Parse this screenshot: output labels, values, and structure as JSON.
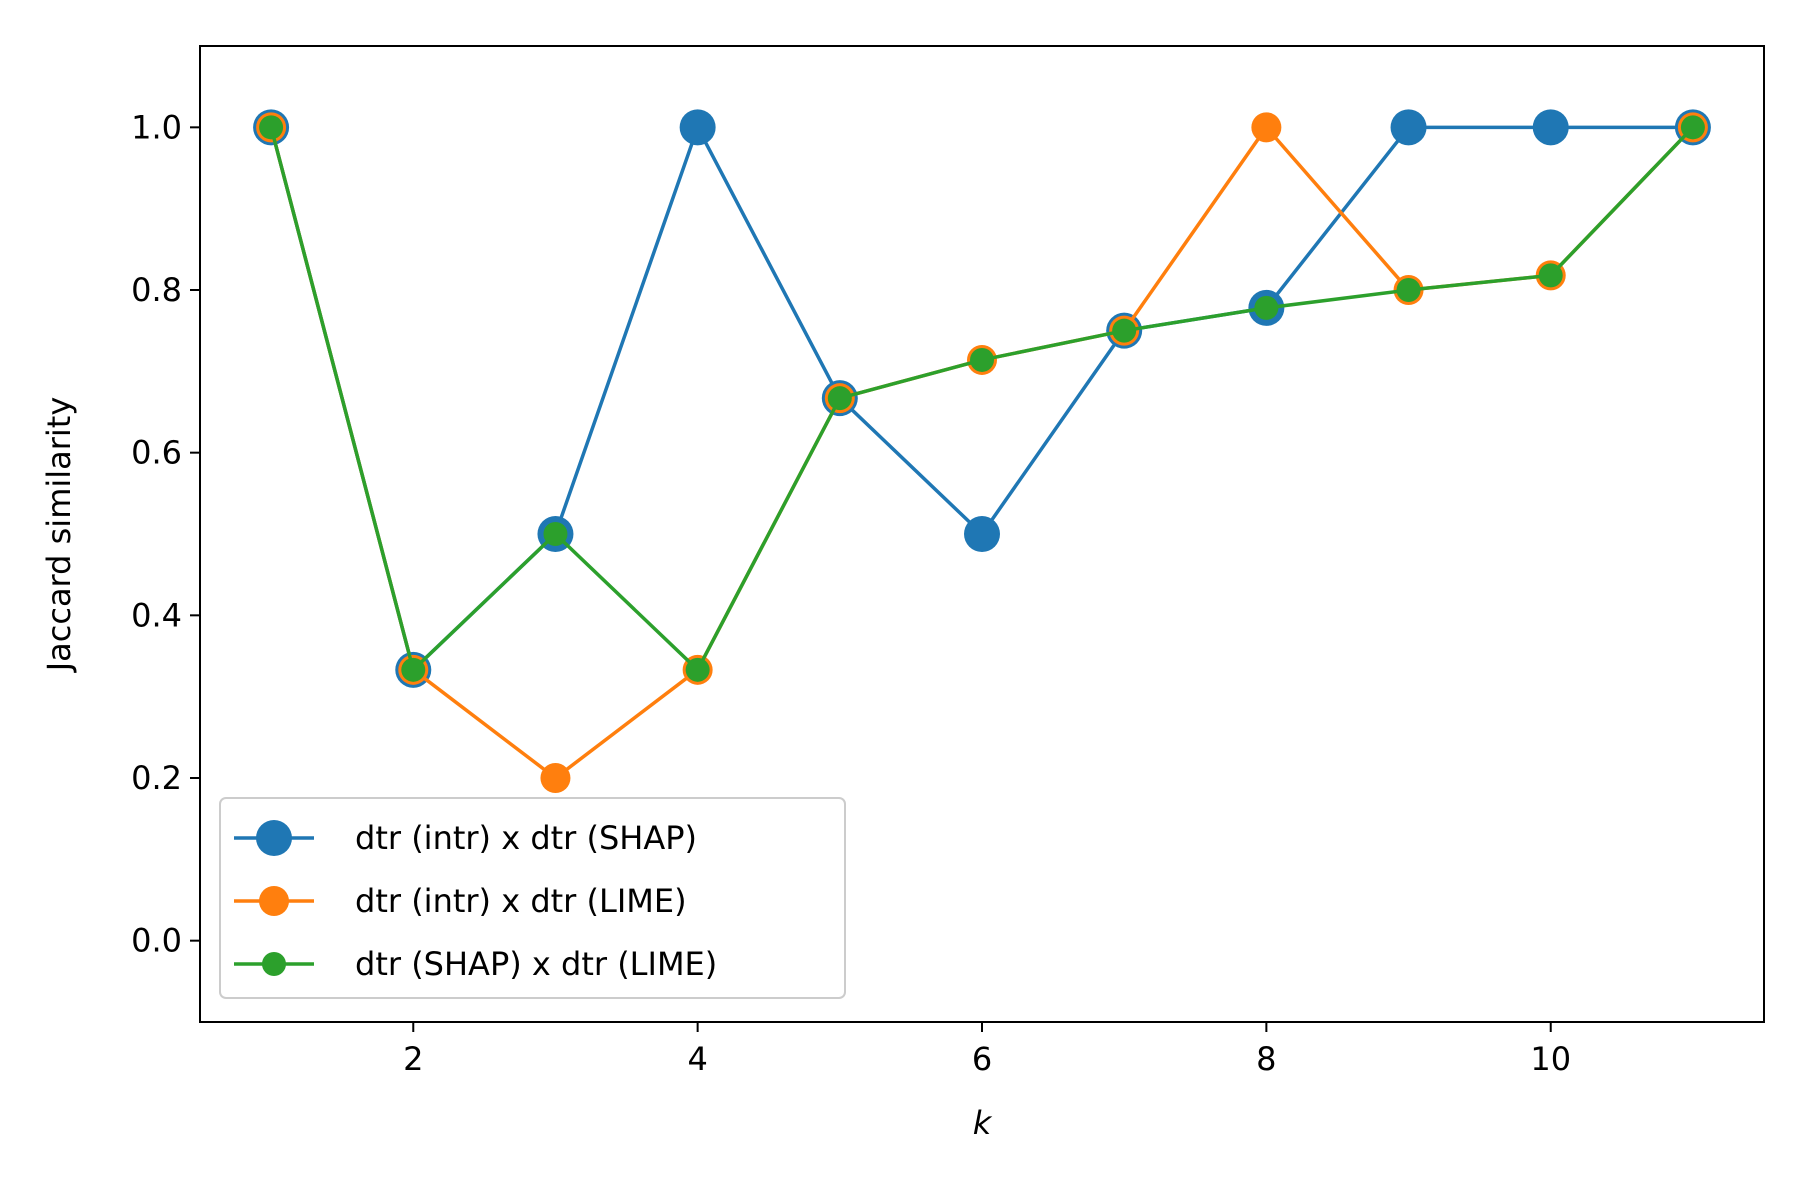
{
  "chart_data": {
    "type": "line",
    "title": "",
    "xlabel": "k",
    "ylabel": "Jaccard similarity",
    "x": [
      1,
      2,
      3,
      4,
      5,
      6,
      7,
      8,
      9,
      10,
      11
    ],
    "xlim": [
      0.5,
      11.5
    ],
    "ylim": [
      -0.1,
      1.1
    ],
    "xticks": [
      2,
      4,
      6,
      8,
      10
    ],
    "xtick_labels": [
      "2",
      "4",
      "6",
      "8",
      "10"
    ],
    "yticks": [
      0.0,
      0.2,
      0.4,
      0.6,
      0.8,
      1.0
    ],
    "ytick_labels": [
      "0.0",
      "0.2",
      "0.4",
      "0.6",
      "0.8",
      "1.0"
    ],
    "grid": false,
    "legend_position": "lower-left",
    "series": [
      {
        "name": "dtr (intr) x dtr (SHAP)",
        "color": "#1f77b4",
        "marker": "large-circle",
        "values": [
          1.0,
          0.333,
          0.5,
          1.0,
          0.667,
          0.5,
          0.75,
          0.778,
          1.0,
          1.0,
          1.0
        ]
      },
      {
        "name": "dtr (intr) x dtr (LIME)",
        "color": "#ff7f0e",
        "marker": "medium-circle",
        "values": [
          1.0,
          0.333,
          0.2,
          0.333,
          0.667,
          0.714,
          0.75,
          1.0,
          0.8,
          0.818,
          1.0
        ]
      },
      {
        "name": "dtr (SHAP) x dtr (LIME)",
        "color": "#2ca02c",
        "marker": "small-circle",
        "values": [
          1.0,
          0.333,
          0.5,
          0.333,
          0.667,
          0.714,
          0.75,
          0.778,
          0.8,
          0.818,
          1.0
        ]
      }
    ]
  }
}
